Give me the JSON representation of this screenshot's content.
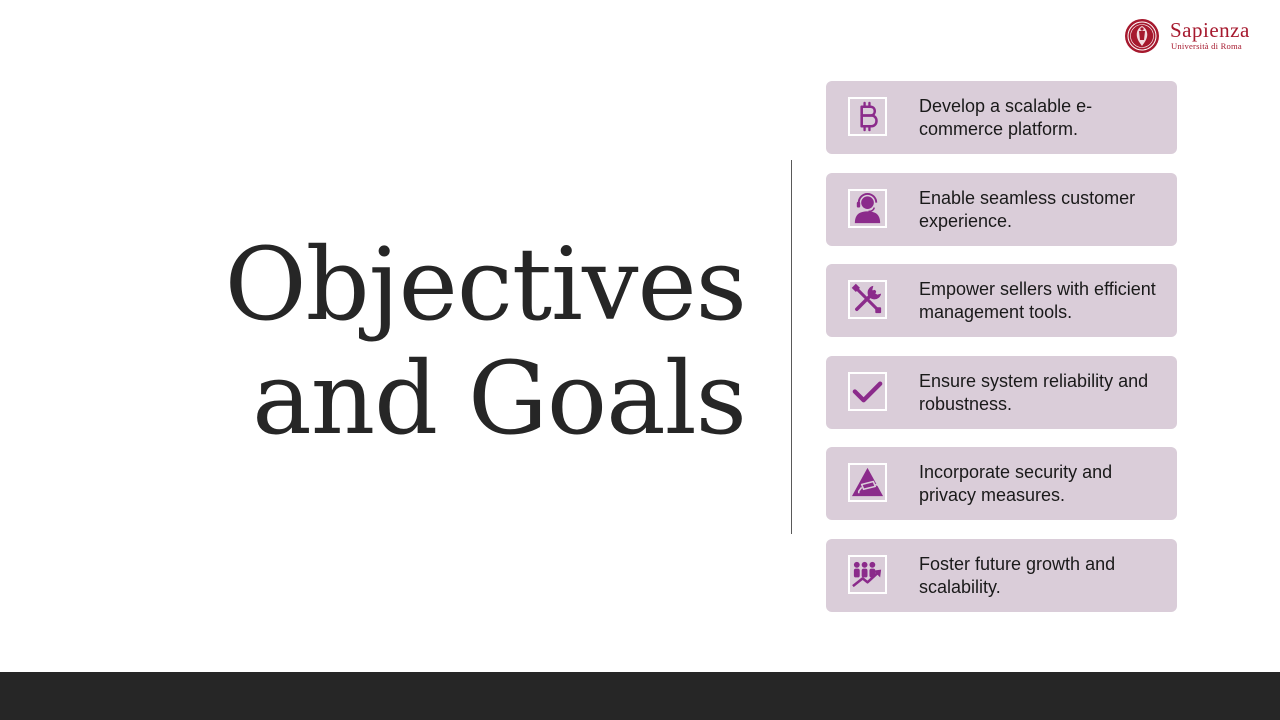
{
  "slide": {
    "title_lines": [
      "Objectives",
      "and Goals"
    ]
  },
  "logo": {
    "name": "Sapienza",
    "subtitle": "Università di Roma",
    "color": "#a6192e"
  },
  "goals": [
    {
      "icon": "bitcoin-icon",
      "text": "Develop a scalable e-commerce platform."
    },
    {
      "icon": "customer-support-icon",
      "text": "Enable seamless customer experience."
    },
    {
      "icon": "tools-icon",
      "text": "Empower sellers with efficient management tools."
    },
    {
      "icon": "checkmark-icon",
      "text": "Ensure system reliability and robustness."
    },
    {
      "icon": "security-camera-warning-icon",
      "text": "Incorporate security and privacy measures."
    },
    {
      "icon": "growth-team-icon",
      "text": "Foster future growth and scalability."
    }
  ],
  "colors": {
    "accent": "#8b2b8b",
    "card_background": "#dacdd9",
    "title_text": "#262626",
    "footer_bar": "#262626"
  }
}
